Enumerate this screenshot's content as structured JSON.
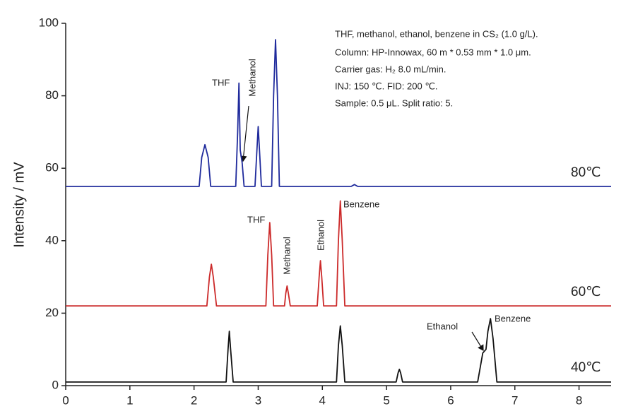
{
  "chart_data": {
    "type": "line",
    "y_label": "Intensity / mV",
    "xlim": [
      0,
      8.5
    ],
    "ylim": [
      0,
      100
    ],
    "xticks": [
      0,
      1,
      2,
      3,
      4,
      5,
      6,
      7,
      8
    ],
    "yticks": [
      0,
      20,
      40,
      60,
      80,
      100
    ],
    "info": [
      "THF, methanol, ethanol, benzene in CS₂ (1.0 g/L).",
      "Column: HP-Innowax, 60 m * 0.53 mm * 1.0 μm.",
      "Carrier gas: H₂ 8.0 mL/min.",
      "INJ: 150 ℃. FID: 200 ℃.",
      "Sample: 0.5 μL. Split ratio: 5."
    ],
    "peak_labels": [
      "THF",
      "Methanol",
      "THF",
      "Methanol",
      "Ethanol",
      "Benzene",
      "Ethanol",
      "Benzene"
    ],
    "series": [
      {
        "name": "80℃",
        "color": "#1f2a9c",
        "x": [
          0,
          2.08,
          2.12,
          2.17,
          2.22,
          2.26,
          2.65,
          2.68,
          2.7,
          2.72,
          2.75,
          2.78,
          2.95,
          2.98,
          3.0,
          3.02,
          3.05,
          3.21,
          3.24,
          3.27,
          3.3,
          3.33,
          4.45,
          4.5,
          4.55,
          8.5
        ],
        "values": [
          55,
          55,
          63,
          66.5,
          63,
          55,
          55,
          70,
          83.5,
          65,
          61.5,
          55,
          55,
          65,
          71.5,
          65,
          55,
          55,
          80,
          95.5,
          80,
          55,
          55,
          55.5,
          55,
          55
        ]
      },
      {
        "name": "60℃",
        "color": "#cc2a2a",
        "x": [
          0,
          2.2,
          2.24,
          2.27,
          2.3,
          2.35,
          3.12,
          3.15,
          3.18,
          3.21,
          3.24,
          3.41,
          3.43,
          3.45,
          3.47,
          3.5,
          3.92,
          3.95,
          3.97,
          3.99,
          4.02,
          4.22,
          4.25,
          4.28,
          4.31,
          4.35,
          8.5
        ],
        "values": [
          22,
          22,
          30,
          33.5,
          30,
          22,
          22,
          36,
          45,
          36,
          22,
          22,
          25.5,
          27.5,
          25.5,
          22,
          22,
          30,
          34.5,
          30,
          22,
          22,
          40,
          51,
          40,
          22,
          22
        ]
      },
      {
        "name": "40℃",
        "color": "#111111",
        "x": [
          0,
          2.5,
          2.53,
          2.55,
          2.57,
          2.61,
          4.22,
          4.25,
          4.28,
          4.31,
          4.35,
          5.15,
          5.18,
          5.2,
          5.22,
          5.25,
          6.42,
          6.46,
          6.5,
          6.55,
          6.58,
          6.62,
          6.66,
          6.72,
          8.5
        ],
        "values": [
          1,
          1,
          10,
          15,
          10,
          1,
          1,
          11,
          16.5,
          11,
          1,
          1,
          3.5,
          4.5,
          3.5,
          1,
          1,
          5,
          9,
          10,
          15,
          18.5,
          13,
          1,
          1
        ]
      }
    ]
  }
}
